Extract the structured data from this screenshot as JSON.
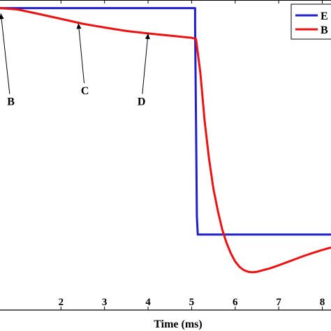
{
  "chart_data": {
    "type": "line",
    "xlabel": "Time (ms)",
    "ylabel": "",
    "title": "",
    "xlim": [
      0.6,
      8.2
    ],
    "ylim": [
      0,
      1.15
    ],
    "xticks": [
      2,
      3,
      4,
      5,
      6,
      7,
      8
    ],
    "xtick_labels": [
      "2",
      "3",
      "4",
      "5",
      "6",
      "7",
      "8"
    ],
    "grid": false,
    "legend_position": "top-right",
    "series": [
      {
        "name": "E",
        "color": "#1f1fcc",
        "x": [
          0.6,
          5.08,
          5.08,
          5.1,
          5.12,
          5.14,
          8.2
        ],
        "y": [
          1.12,
          1.12,
          1.05,
          0.7,
          0.35,
          0.28,
          0.28
        ]
      },
      {
        "name": "B",
        "color": "#ee1111",
        "x": [
          0.6,
          1.0,
          1.5,
          2.0,
          2.5,
          3.0,
          3.5,
          4.0,
          4.5,
          5.0,
          5.1,
          5.2,
          5.3,
          5.4,
          5.5,
          5.6,
          5.7,
          5.8,
          5.9,
          6.0,
          6.1,
          6.2,
          6.3,
          6.4,
          6.5,
          6.6,
          6.8,
          7.0,
          7.2,
          7.4,
          7.6,
          7.8,
          8.0,
          8.2
        ],
        "y": [
          1.12,
          1.115,
          1.098,
          1.08,
          1.062,
          1.048,
          1.035,
          1.026,
          1.018,
          1.01,
          1.005,
          0.88,
          0.7,
          0.56,
          0.45,
          0.37,
          0.3,
          0.25,
          0.21,
          0.18,
          0.16,
          0.148,
          0.142,
          0.14,
          0.142,
          0.146,
          0.155,
          0.166,
          0.178,
          0.19,
          0.202,
          0.213,
          0.223,
          0.232
        ]
      }
    ],
    "annotations": [
      {
        "text": "B",
        "x": 0.85,
        "y": 0.76,
        "arrow_to": [
          0.62,
          1.1
        ]
      },
      {
        "text": "C",
        "x": 2.55,
        "y": 0.8,
        "arrow_to": [
          2.4,
          1.064
        ]
      },
      {
        "text": "D",
        "x": 3.85,
        "y": 0.76,
        "arrow_to": [
          4.0,
          1.026
        ]
      }
    ]
  }
}
